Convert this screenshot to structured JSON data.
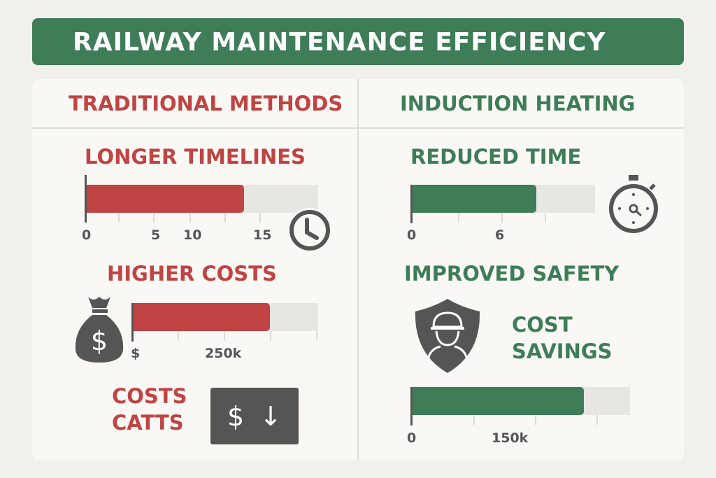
{
  "title": "RAILWAY MAINTENANCE EFFICIENCY",
  "colors": {
    "green": "#3e7d58",
    "red": "#bf4443",
    "icon": "#555555",
    "track": "#e7e6e2"
  },
  "left": {
    "heading": "TRADITIONAL METHODS",
    "timelines": {
      "label": "LONGER TIMELINES",
      "fill_fraction": 0.68,
      "ticks": [
        "0",
        "5",
        "10",
        "15"
      ],
      "icon": "clock-icon"
    },
    "costs": {
      "label": "HIGHER COSTS",
      "fill_fraction": 0.74,
      "ticks": [
        "$",
        "250k"
      ],
      "icon": "money-bag-icon"
    },
    "cuts": {
      "line1": "COSTS",
      "line2": "CATTS",
      "badge_dollar": "$",
      "badge_arrow": "↓"
    }
  },
  "right": {
    "heading": "INDUCTION HEATING",
    "time": {
      "label": "REDUCED TIME",
      "fill_fraction": 0.68,
      "ticks": [
        "0",
        "6"
      ],
      "icon": "stopwatch-icon"
    },
    "safety": {
      "label": "IMPROVED SAFETY",
      "icon": "shield-worker-icon"
    },
    "savings": {
      "line1": "COST",
      "line2": "SAVINGS",
      "fill_fraction": 0.79,
      "ticks": [
        "0",
        "150k"
      ]
    }
  }
}
